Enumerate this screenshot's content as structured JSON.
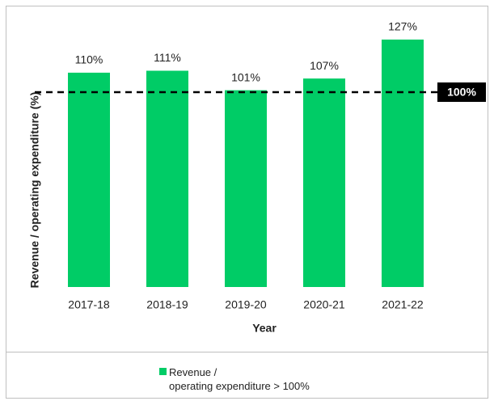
{
  "chart_data": {
    "type": "bar",
    "x_label": "Year",
    "y_label": "Revenue / operating expenditure (%)",
    "categories": [
      "2017-18",
      "2018-19",
      "2019-20",
      "2020-21",
      "2021-22"
    ],
    "series": [
      {
        "name": "Revenue /\noperating expenditure > 100%",
        "color": "#00cc66",
        "values": [
          110,
          111,
          101,
          107,
          127
        ],
        "value_labels": [
          "110%",
          "111%",
          "101%",
          "107%",
          "127%"
        ]
      }
    ],
    "ylim": [
      0,
      140
    ],
    "reference_line": {
      "value": 100,
      "label": "100%"
    }
  }
}
